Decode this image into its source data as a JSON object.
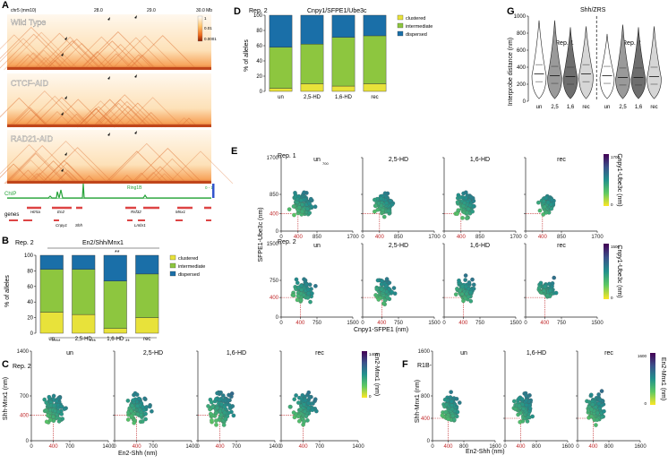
{
  "panels": {
    "A": {
      "label": "A",
      "header_left": "chr5 (mm10)",
      "header_mid1": "28.0",
      "header_mid2": "29.0",
      "scale_unit": "30.0 Mb",
      "colorbar_ticks": [
        "1",
        "0.01",
        "0.0001"
      ],
      "map_labels": [
        "Wild Type",
        "CTCF-AID",
        "RAD21-AID"
      ],
      "chip_label": "ChIP",
      "chip_track": "Ring1B",
      "chip_scale": "0 - 1",
      "genes_label": "genes",
      "gene_names": [
        "Htr5a",
        "En2",
        "Cnpy1",
        "Shh",
        "Rsf32",
        "Lmbr1",
        "Mnx1"
      ]
    },
    "B": {
      "label": "B",
      "replicate": "Rep. 2",
      "title": "En2/Shh/Mnx1",
      "ylabel": "% of alleles",
      "sig_top": "**",
      "sig_bottom": [
        "****",
        "***",
        "**"
      ]
    },
    "C": {
      "label": "C",
      "replicate": "Rep. 2",
      "ylabel": "Shh-Mnx1 (nm)",
      "xlabel": "En2-Shh (nm)",
      "colorbar_label": "En2-Mnx1 (nm)",
      "colorbar_ticks": [
        "1400",
        "0"
      ],
      "conditions": [
        "un",
        "2,5-HD",
        "1,6-HD",
        "rec"
      ]
    },
    "D": {
      "label": "D",
      "replicate": "Rep. 2",
      "title": "Cnpy1/SFPE1/Ube3c",
      "ylabel": "% of alleles"
    },
    "E": {
      "label": "E",
      "ylabel": "SFPE1-Ube3c (nm)",
      "xlabel": "Cnpy1-SFPE1 (nm)",
      "rep1": "Rep. 1",
      "rep2": "Rep. 2",
      "outlier_note": "700",
      "colorbar_label": "Cnpy1-Ube3c (nm)",
      "colorbar1_ticks": [
        "1700",
        "0"
      ],
      "colorbar2_ticks": [
        "1500",
        "0"
      ],
      "conditions": [
        "un",
        "2,5-HD",
        "1,6-HD",
        "rec"
      ]
    },
    "F": {
      "label": "F",
      "replicate": "R1B-",
      "ylabel": "Shh-Mnx1 (nm)",
      "xlabel": "En2-Shh (nm)",
      "colorbar_label": "En2-Mnx1 (nm)",
      "colorbar_ticks": [
        "1600",
        "0"
      ],
      "conditions": [
        "un",
        "1,6-HD",
        "rec"
      ]
    },
    "G": {
      "label": "G",
      "title": "Shh/ZRS",
      "ylabel": "Interprobe distance (nm)",
      "rep1": "Rep. 1",
      "rep2": "Rep. 2"
    }
  },
  "colors": {
    "clustered": "#e8e23a",
    "intermediate": "#8dc63f",
    "dispersed": "#1a6fa8",
    "threshold_red": "#c0282a",
    "hic_low": "#fff5e6",
    "hic_high": "#b83a00"
  },
  "chart_data": [
    {
      "id": "B",
      "type": "bar",
      "title": "En2/Shh/Mnx1",
      "ylabel": "% of alleles",
      "ylim": [
        0,
        100
      ],
      "yticks": [
        "0",
        "20",
        "40",
        "60",
        "80",
        "100"
      ],
      "categories": [
        "un",
        "2,5-HD",
        "1,6-HD",
        "rec"
      ],
      "series": [
        {
          "name": "clustered",
          "values": [
            27,
            24,
            6,
            20
          ]
        },
        {
          "name": "intermediate",
          "values": [
            55,
            58,
            61,
            56
          ]
        },
        {
          "name": "dispersed",
          "values": [
            18,
            18,
            33,
            24
          ]
        }
      ]
    },
    {
      "id": "D",
      "type": "bar",
      "title": "Cnpy1/SFPE1/Ube3c",
      "ylabel": "% of alleles",
      "ylim": [
        0,
        100
      ],
      "yticks": [
        "0",
        "20",
        "40",
        "60",
        "80",
        "100"
      ],
      "categories": [
        "un",
        "2,5-HD",
        "1,6-HD",
        "rec"
      ],
      "series": [
        {
          "name": "clustered",
          "values": [
            4,
            10,
            7,
            10
          ]
        },
        {
          "name": "intermediate",
          "values": [
            54,
            52,
            64,
            63
          ]
        },
        {
          "name": "dispersed",
          "values": [
            42,
            38,
            29,
            27
          ]
        }
      ]
    },
    {
      "id": "G",
      "type": "violin",
      "title": "Shh/ZRS",
      "ylabel": "Interprobe distance (nm)",
      "ylim": [
        0,
        1000
      ],
      "yticks": [
        "0",
        "200",
        "400",
        "600",
        "800",
        "1000"
      ],
      "categories": [
        "un",
        "2,5",
        "1,6",
        "rec",
        "un",
        "2,5",
        "1,6",
        "rec"
      ],
      "replicate_groups": [
        "Rep. 1",
        "Rep. 1",
        "Rep. 1",
        "Rep. 1",
        "Rep. 2",
        "Rep. 2",
        "Rep. 2",
        "Rep. 2"
      ],
      "shades": [
        "#ffffff",
        "#9a9a9a",
        "#6e6e6e",
        "#d6d6d6",
        "#ffffff",
        "#9a9a9a",
        "#6e6e6e",
        "#d6d6d6"
      ],
      "medians": [
        320,
        300,
        290,
        320,
        300,
        280,
        280,
        290
      ],
      "maxes": [
        950,
        950,
        870,
        880,
        790,
        900,
        870,
        880
      ]
    },
    {
      "id": "C",
      "type": "scatter",
      "xlabel": "En2-Shh (nm)",
      "ylabel": "Shh-Mnx1 (nm)",
      "xlim": [
        0,
        1400
      ],
      "ylim": [
        0,
        1400
      ],
      "xticks": [
        {
          "v": 0,
          "t": "0"
        },
        {
          "v": 400,
          "t": "400",
          "red": true
        },
        {
          "v": 700,
          "t": "700"
        },
        {
          "v": 1400,
          "t": "1400"
        }
      ],
      "yticks": [
        {
          "v": 0,
          "t": "0"
        },
        {
          "v": 400,
          "t": "400",
          "red": true
        },
        {
          "v": 700,
          "t": "700"
        },
        {
          "v": 1400,
          "t": "1400"
        }
      ],
      "threshold": 400,
      "color_max": 1400,
      "conditions": [
        "un",
        "2,5-HD",
        "1,6-HD",
        "rec"
      ],
      "point_counts": [
        110,
        95,
        110,
        85
      ],
      "spreads": [
        1.0,
        1.05,
        1.25,
        1.1
      ]
    },
    {
      "id": "E1",
      "type": "scatter",
      "xlabel": "Cnpy1-SFPE1 (nm)",
      "ylabel": "SFPE1-Ube3c (nm)",
      "xlim": [
        0,
        1700
      ],
      "ylim": [
        0,
        1700
      ],
      "xticks": [
        {
          "v": 0,
          "t": "0"
        },
        {
          "v": 400,
          "t": "400",
          "red": true
        },
        {
          "v": 850,
          "t": "850"
        },
        {
          "v": 1700,
          "t": "1700"
        }
      ],
      "yticks": [
        {
          "v": 0,
          "t": "0"
        },
        {
          "v": 400,
          "t": "400",
          "red": true
        },
        {
          "v": 850,
          "t": "850"
        },
        {
          "v": 1700,
          "t": "1700"
        }
      ],
      "threshold": 400,
      "color_max": 1700,
      "conditions": [
        "un",
        "2,5-HD",
        "1,6-HD",
        "rec"
      ],
      "point_counts": [
        115,
        95,
        100,
        80
      ],
      "spreads": [
        1.0,
        0.9,
        1.0,
        0.8
      ]
    },
    {
      "id": "E2",
      "type": "scatter",
      "xlabel": "Cnpy1-SFPE1 (nm)",
      "ylabel": "SFPE1-Ube3c (nm)",
      "xlim": [
        0,
        1500
      ],
      "ylim": [
        0,
        1500
      ],
      "xticks": [
        {
          "v": 0,
          "t": "0"
        },
        {
          "v": 400,
          "t": "400",
          "red": true
        },
        {
          "v": 750,
          "t": "750"
        },
        {
          "v": 1500,
          "t": "1500"
        }
      ],
      "yticks": [
        {
          "v": 0,
          "t": "0"
        },
        {
          "v": 400,
          "t": "400",
          "red": true
        },
        {
          "v": 750,
          "t": "750"
        },
        {
          "v": 1500,
          "t": "1500"
        }
      ],
      "threshold": 400,
      "color_max": 1500,
      "conditions": [
        "un",
        "2,5-HD",
        "1,6-HD",
        "rec"
      ],
      "point_counts": [
        95,
        80,
        75,
        60
      ],
      "spreads": [
        1.0,
        1.0,
        1.0,
        0.85
      ]
    },
    {
      "id": "F",
      "type": "scatter",
      "xlabel": "En2-Shh (nm)",
      "ylabel": "Shh-Mnx1 (nm)",
      "xlim": [
        0,
        1600
      ],
      "ylim": [
        0,
        1600
      ],
      "xticks": [
        {
          "v": 0,
          "t": "0"
        },
        {
          "v": 400,
          "t": "400",
          "red": true
        },
        {
          "v": 800,
          "t": "800"
        },
        {
          "v": 1600,
          "t": "1600"
        }
      ],
      "yticks": [
        {
          "v": 0,
          "t": "0"
        },
        {
          "v": 400,
          "t": "400",
          "red": true
        },
        {
          "v": 800,
          "t": "800"
        },
        {
          "v": 1600,
          "t": "1600"
        }
      ],
      "threshold": 400,
      "color_max": 1600,
      "conditions": [
        "un",
        "1,6-HD",
        "rec"
      ],
      "point_counts": [
        110,
        105,
        105
      ],
      "spreads": [
        1.0,
        1.1,
        1.1
      ]
    }
  ]
}
